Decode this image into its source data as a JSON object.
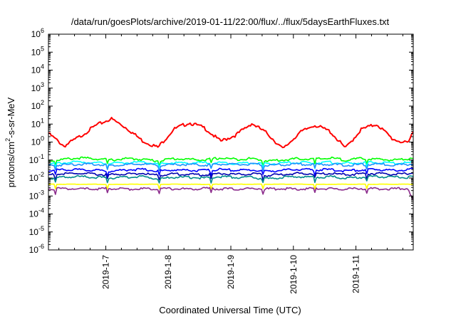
{
  "chart_data": {
    "type": "line",
    "title": "/data/run/goesPlots/archive/2019-01-11/22:00/flux/../flux/5daysEarthFluxes.txt",
    "xlabel": "Coordinated Universal Time (UTC)",
    "ylabel": "protons/cm²-s-sr-MeV",
    "ylabel_parts": {
      "pre": "protons/cm",
      "sup": "2",
      "post": "-s-sr-MeV"
    },
    "yscale": "log",
    "ylim": [
      1e-06,
      1000000.0
    ],
    "y_ticks": [
      {
        "base": "10",
        "exp": "-6"
      },
      {
        "base": "10",
        "exp": "-5"
      },
      {
        "base": "10",
        "exp": "-4"
      },
      {
        "base": "10",
        "exp": "-3"
      },
      {
        "base": "10",
        "exp": "-2"
      },
      {
        "base": "10",
        "exp": "-1"
      },
      {
        "base": "10",
        "exp": "0"
      },
      {
        "base": "10",
        "exp": "1"
      },
      {
        "base": "10",
        "exp": "2"
      },
      {
        "base": "10",
        "exp": "3"
      },
      {
        "base": "10",
        "exp": "4"
      },
      {
        "base": "10",
        "exp": "5"
      },
      {
        "base": "10",
        "exp": "6"
      }
    ],
    "xlim": [
      "2019-01-06 02:00",
      "2019-01-11 22:00"
    ],
    "x_ticks": [
      "2019-1-7",
      "2019-1-8",
      "2019-1-9",
      "2019-1-10",
      "2019-1-11"
    ],
    "grid": false,
    "legend": "none",
    "x": [
      0,
      0.25,
      0.5,
      0.75,
      1,
      1.25,
      1.5,
      1.75,
      2,
      2.25,
      2.5,
      2.75,
      3,
      3.25,
      3.5,
      3.75,
      4,
      4.25,
      4.5,
      4.75,
      5,
      5.25,
      5.5,
      5.75,
      5.83
    ],
    "x_unit": "days since 2019-01-06 02:00",
    "series": [
      {
        "color": "#ff0000",
        "values": [
          3,
          0.6,
          2,
          8,
          20,
          6,
          1.2,
          0.5,
          5,
          12,
          6,
          1.1,
          2.5,
          11,
          3,
          0.4,
          3,
          9,
          4,
          0.45,
          5,
          10,
          1.5,
          0.8,
          4
        ]
      },
      {
        "color": "#00ff00",
        "values": [
          0.09,
          0.11,
          0.13,
          0.12,
          0.1,
          0.12,
          0.11,
          0.09,
          0.12,
          0.11,
          0.1,
          0.13,
          0.11,
          0.12,
          0.09,
          0.1,
          0.12,
          0.11,
          0.13,
          0.1,
          0.12,
          0.11,
          0.1,
          0.12,
          0.14
        ]
      },
      {
        "color": "#00ffff",
        "values": [
          0.06,
          0.07,
          0.08,
          0.07,
          0.065,
          0.07,
          0.075,
          0.06,
          0.07,
          0.068,
          0.072,
          0.07,
          0.065,
          0.07,
          0.06,
          0.068,
          0.072,
          0.07,
          0.075,
          0.065,
          0.07,
          0.072,
          0.068,
          0.07,
          0.08
        ]
      },
      {
        "color": "#1e90ff",
        "values": [
          0.05,
          0.055,
          0.06,
          0.058,
          0.05,
          0.055,
          0.06,
          0.05,
          0.055,
          0.057,
          0.052,
          0.06,
          0.055,
          0.058,
          0.05,
          0.055,
          0.06,
          0.056,
          0.058,
          0.052,
          0.055,
          0.06,
          0.054,
          0.057,
          0.065
        ]
      },
      {
        "color": "#0000ff",
        "values": [
          0.025,
          0.03,
          0.028,
          0.027,
          0.024,
          0.029,
          0.03,
          0.025,
          0.028,
          0.027,
          0.026,
          0.03,
          0.027,
          0.028,
          0.024,
          0.027,
          0.03,
          0.028,
          0.029,
          0.025,
          0.028,
          0.03,
          0.027,
          0.028,
          0.032
        ]
      },
      {
        "color": "#0000b0",
        "values": [
          0.015,
          0.017,
          0.018,
          0.016,
          0.015,
          0.017,
          0.018,
          0.014,
          0.017,
          0.016,
          0.015,
          0.018,
          0.016,
          0.017,
          0.014,
          0.016,
          0.018,
          0.017,
          0.018,
          0.015,
          0.017,
          0.018,
          0.016,
          0.017,
          0.02
        ]
      },
      {
        "color": "#008b8b",
        "values": [
          0.01,
          0.011,
          0.012,
          0.011,
          0.01,
          0.011,
          0.012,
          0.009,
          0.011,
          0.011,
          0.01,
          0.012,
          0.011,
          0.011,
          0.009,
          0.011,
          0.012,
          0.011,
          0.012,
          0.01,
          0.011,
          0.012,
          0.011,
          0.011,
          0.012
        ]
      },
      {
        "color": "#ffff00",
        "values": [
          0.0045,
          0.0045,
          0.0045,
          0.0045,
          0.0044,
          0.0045,
          0.0045,
          0.0045,
          0.0045,
          0.0045,
          0.0044,
          0.0045,
          0.0045,
          0.0045,
          0.0045,
          0.0045,
          0.0045,
          0.0044,
          0.0045,
          0.0045,
          0.0045,
          0.0045,
          0.0045,
          0.0045,
          0.0045
        ]
      },
      {
        "color": "#8b2a8b",
        "values": [
          0.0025,
          0.0026,
          0.0024,
          0.0025,
          0.0026,
          0.0024,
          0.0025,
          0.0026,
          0.0025,
          0.0024,
          0.0026,
          0.0025,
          0.0024,
          0.0026,
          0.0025,
          0.0025,
          0.0024,
          0.0026,
          0.0025,
          0.0024,
          0.0026,
          0.0025,
          0.0025,
          0.0026,
          0.0006
        ]
      }
    ]
  }
}
